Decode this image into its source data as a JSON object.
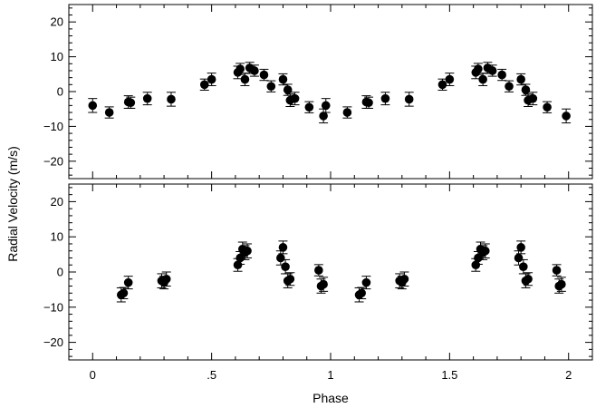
{
  "chart_data": [
    {
      "type": "scatter",
      "panel": "top",
      "xlabel": "Phase",
      "ylabel": "Radial Velocity (m/s)",
      "xlim": [
        -0.1,
        2.1
      ],
      "ylim": [
        -25,
        25
      ],
      "xticks": [
        0,
        0.5,
        1,
        1.5,
        2
      ],
      "xtick_labels": [
        "0",
        ".5",
        "1",
        "1.5",
        "2"
      ],
      "yticks": [
        -20,
        -10,
        0,
        10,
        20
      ],
      "ytick_labels": [
        "−20",
        "−10",
        "0",
        "10",
        "20"
      ],
      "error_bars": true,
      "x": [
        0.0,
        0.07,
        0.15,
        0.16,
        0.23,
        0.33,
        0.47,
        0.5,
        0.61,
        0.62,
        0.64,
        0.66,
        0.68,
        0.72,
        0.75,
        0.8,
        0.82,
        0.83,
        0.85,
        0.91,
        0.97,
        0.98,
        1.07,
        1.15,
        1.16,
        1.23,
        1.33,
        1.47,
        1.5,
        1.61,
        1.62,
        1.64,
        1.66,
        1.68,
        1.72,
        1.75,
        1.8,
        1.82,
        1.83,
        1.85,
        1.91,
        1.99
      ],
      "y": [
        -4.0,
        -6.0,
        -3.0,
        -3.2,
        -2.0,
        -2.2,
        2.0,
        3.5,
        5.5,
        6.5,
        3.5,
        6.8,
        6.0,
        4.8,
        1.5,
        3.5,
        0.5,
        -2.5,
        -2.0,
        -4.5,
        -7.0,
        -4.0,
        -6.0,
        -3.0,
        -3.2,
        -2.0,
        -2.2,
        2.0,
        3.5,
        5.5,
        6.5,
        3.5,
        6.8,
        6.0,
        4.8,
        1.5,
        3.5,
        0.5,
        -2.5,
        -2.0,
        -4.5,
        -7.0
      ],
      "yerr": [
        2.0,
        1.6,
        1.8,
        1.6,
        1.8,
        2.0,
        1.6,
        1.8,
        1.8,
        1.6,
        1.8,
        1.6,
        1.6,
        1.6,
        1.6,
        1.6,
        1.6,
        1.8,
        1.8,
        1.6,
        2.0,
        2.0,
        1.6,
        1.8,
        1.6,
        1.8,
        2.0,
        1.6,
        1.8,
        1.8,
        1.6,
        1.8,
        1.6,
        1.6,
        1.6,
        1.6,
        1.6,
        1.6,
        1.8,
        1.8,
        1.6,
        2.0
      ]
    },
    {
      "type": "scatter",
      "panel": "bottom",
      "xlabel": "Phase",
      "ylabel": "Radial Velocity (m/s)",
      "xlim": [
        -0.1,
        2.1
      ],
      "ylim": [
        -25,
        25
      ],
      "xticks": [
        0,
        0.5,
        1,
        1.5,
        2
      ],
      "xtick_labels": [
        "0",
        ".5",
        "1",
        "1.5",
        "2"
      ],
      "yticks": [
        -20,
        -10,
        0,
        10,
        20
      ],
      "ytick_labels": [
        "−20",
        "−10",
        "0",
        "10",
        "20"
      ],
      "error_bars": true,
      "x": [
        0.12,
        0.13,
        0.15,
        0.29,
        0.3,
        0.31,
        0.61,
        0.62,
        0.63,
        0.64,
        0.65,
        0.79,
        0.8,
        0.81,
        0.82,
        0.83,
        0.95,
        0.96,
        0.97,
        1.12,
        1.13,
        1.15,
        1.29,
        1.3,
        1.31,
        1.61,
        1.62,
        1.63,
        1.64,
        1.65,
        1.79,
        1.8,
        1.81,
        1.82,
        1.83,
        1.95,
        1.96,
        1.97
      ],
      "y": [
        -6.5,
        -6.0,
        -3.0,
        -2.5,
        -3.0,
        -2.0,
        2.0,
        4.0,
        6.5,
        5.5,
        6.0,
        4.0,
        7.0,
        1.5,
        -2.5,
        -2.0,
        0.5,
        -4.0,
        -3.5,
        -6.5,
        -6.0,
        -3.0,
        -2.5,
        -3.0,
        -2.0,
        2.0,
        4.0,
        6.5,
        5.5,
        6.0,
        4.0,
        7.0,
        1.5,
        -2.5,
        -2.0,
        0.5,
        -4.0,
        -3.5
      ],
      "yerr": [
        2.0,
        1.6,
        1.8,
        2.0,
        1.8,
        2.0,
        1.8,
        1.8,
        2.0,
        2.0,
        2.0,
        2.0,
        1.8,
        2.0,
        2.0,
        1.8,
        1.6,
        2.0,
        2.0,
        2.0,
        1.6,
        1.8,
        2.0,
        1.8,
        2.0,
        1.8,
        1.8,
        2.0,
        2.0,
        2.0,
        2.0,
        1.8,
        2.0,
        2.0,
        1.8,
        1.6,
        2.0,
        2.0
      ]
    }
  ]
}
